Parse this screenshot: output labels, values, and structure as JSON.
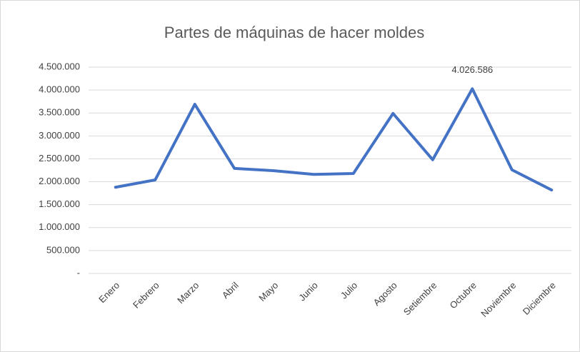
{
  "chart_data": {
    "type": "line",
    "title": "Partes de máquinas de hacer moldes",
    "categories": [
      "Enero",
      "Febrero",
      "Marzo",
      "Abril",
      "Mayo",
      "Junio",
      "Julio",
      "Agosto",
      "Setiembre",
      "Octubre",
      "Noviembre",
      "Diciembre"
    ],
    "series": [
      {
        "name": "Partes de máquinas de hacer moldes",
        "color": "#4472c4",
        "values": [
          1880000,
          2040000,
          3690000,
          2290000,
          2240000,
          2160000,
          2180000,
          3490000,
          2480000,
          4026586,
          2260000,
          1820000
        ],
        "value_labels": [
          null,
          null,
          null,
          null,
          null,
          null,
          null,
          null,
          null,
          "4.026.586",
          null,
          null
        ]
      }
    ],
    "ylim": [
      0,
      4500000
    ],
    "yticks": [
      {
        "value": 0,
        "label": "-"
      },
      {
        "value": 500000,
        "label": "500.000"
      },
      {
        "value": 1000000,
        "label": "1.000.000"
      },
      {
        "value": 1500000,
        "label": "1.500.000"
      },
      {
        "value": 2000000,
        "label": "2.000.000"
      },
      {
        "value": 2500000,
        "label": "2.500.000"
      },
      {
        "value": 3000000,
        "label": "3.000.000"
      },
      {
        "value": 3500000,
        "label": "3.500.000"
      },
      {
        "value": 4000000,
        "label": "4.000.000"
      },
      {
        "value": 4500000,
        "label": "4.500.000"
      }
    ],
    "grid": true
  }
}
